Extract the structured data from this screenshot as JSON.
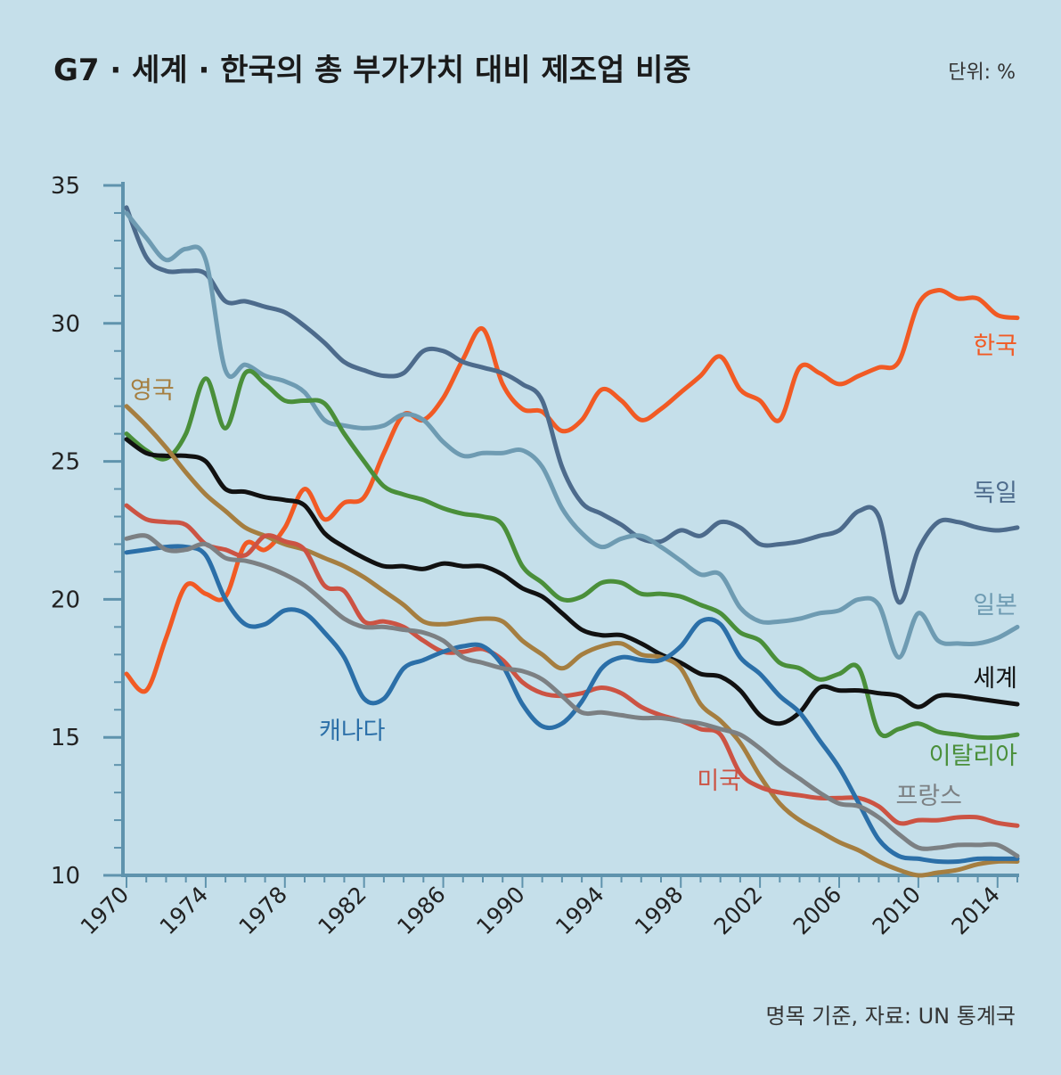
{
  "title": "G7 · 세계 · 한국의 총 부가가치 대비 제조업 비중",
  "unit_label": "단위: %",
  "source": "명목 기준, 자료: UN 통계국",
  "chart_data": {
    "type": "line",
    "x_start": 1970,
    "x_end": 2015,
    "ylim": [
      10,
      35
    ],
    "yticks": [
      "35",
      "30",
      "25",
      "20",
      "15",
      "10"
    ],
    "xticks": [
      "1970",
      "1974",
      "1978",
      "1982",
      "1986",
      "1990",
      "1994",
      "1998",
      "2002",
      "2006",
      "2010",
      "2014"
    ],
    "grid": false,
    "years": [
      1970,
      1971,
      1972,
      1973,
      1974,
      1975,
      1976,
      1977,
      1978,
      1979,
      1980,
      1981,
      1982,
      1983,
      1984,
      1985,
      1986,
      1987,
      1988,
      1989,
      1990,
      1991,
      1992,
      1993,
      1994,
      1995,
      1996,
      1997,
      1998,
      1999,
      2000,
      2001,
      2002,
      2003,
      2004,
      2005,
      2006,
      2007,
      2008,
      2009,
      2010,
      2011,
      2012,
      2013,
      2014,
      2015
    ],
    "series": [
      {
        "name": "한국",
        "color": "#f15a24",
        "values": [
          17.3,
          16.7,
          18.6,
          20.5,
          20.2,
          20.1,
          22.0,
          21.8,
          22.6,
          24.0,
          22.9,
          23.5,
          23.7,
          25.3,
          26.7,
          26.5,
          27.3,
          28.7,
          29.8,
          27.8,
          26.9,
          26.8,
          26.1,
          26.5,
          27.6,
          27.2,
          26.5,
          26.9,
          27.5,
          28.1,
          28.8,
          27.6,
          27.2,
          26.5,
          28.4,
          28.2,
          27.8,
          28.1,
          28.4,
          28.6,
          30.7,
          31.2,
          30.9,
          30.9,
          30.3,
          30.2
        ]
      },
      {
        "name": "독일",
        "color": "#4d6b8c",
        "values": [
          34.2,
          32.4,
          31.9,
          31.9,
          31.8,
          30.8,
          30.8,
          30.6,
          30.4,
          29.9,
          29.3,
          28.6,
          28.3,
          28.1,
          28.2,
          29.0,
          29.0,
          28.6,
          28.4,
          28.2,
          27.8,
          27.2,
          24.8,
          23.5,
          23.1,
          22.7,
          22.2,
          22.1,
          22.5,
          22.3,
          22.8,
          22.6,
          22.0,
          22.0,
          22.1,
          22.3,
          22.5,
          23.2,
          23.0,
          19.9,
          21.8,
          22.8,
          22.8,
          22.6,
          22.5,
          22.6
        ]
      },
      {
        "name": "일본",
        "color": "#6e9bb2",
        "values": [
          34.0,
          33.1,
          32.3,
          32.7,
          32.3,
          28.3,
          28.5,
          28.1,
          27.9,
          27.5,
          26.5,
          26.3,
          26.2,
          26.3,
          26.7,
          26.5,
          25.7,
          25.2,
          25.3,
          25.3,
          25.4,
          24.8,
          23.3,
          22.4,
          21.9,
          22.2,
          22.3,
          21.9,
          21.4,
          20.9,
          20.9,
          19.7,
          19.2,
          19.2,
          19.3,
          19.5,
          19.6,
          20.0,
          19.8,
          17.9,
          19.5,
          18.5,
          18.4,
          18.4,
          18.6,
          19.0
        ]
      },
      {
        "name": "이탈리아",
        "color": "#4a8f3a",
        "values": [
          26.0,
          25.4,
          25.1,
          26.0,
          28.0,
          26.2,
          28.2,
          27.8,
          27.2,
          27.2,
          27.1,
          26.0,
          25.0,
          24.1,
          23.8,
          23.6,
          23.3,
          23.1,
          23.0,
          22.7,
          21.2,
          20.6,
          20.0,
          20.1,
          20.6,
          20.6,
          20.2,
          20.2,
          20.1,
          19.8,
          19.5,
          18.8,
          18.5,
          17.7,
          17.5,
          17.1,
          17.3,
          17.5,
          15.2,
          15.3,
          15.5,
          15.2,
          15.1,
          15.0,
          15.0,
          15.1
        ]
      },
      {
        "name": "세계",
        "color": "#111111",
        "values": [
          25.8,
          25.3,
          25.2,
          25.2,
          25.0,
          24.0,
          23.9,
          23.7,
          23.6,
          23.4,
          22.4,
          21.9,
          21.5,
          21.2,
          21.2,
          21.1,
          21.3,
          21.2,
          21.2,
          20.9,
          20.4,
          20.1,
          19.5,
          18.9,
          18.7,
          18.7,
          18.4,
          18.0,
          17.7,
          17.3,
          17.2,
          16.7,
          15.8,
          15.5,
          15.9,
          16.8,
          16.7,
          16.7,
          16.6,
          16.5,
          16.1,
          16.5,
          16.5,
          16.4,
          16.3,
          16.2
        ]
      },
      {
        "name": "영국",
        "color": "#a57e40",
        "values": [
          27.0,
          26.3,
          25.5,
          24.6,
          23.8,
          23.2,
          22.6,
          22.3,
          22.0,
          21.8,
          21.5,
          21.2,
          20.8,
          20.3,
          19.8,
          19.2,
          19.1,
          19.2,
          19.3,
          19.2,
          18.5,
          18.0,
          17.5,
          18.0,
          18.3,
          18.4,
          18.0,
          17.9,
          17.5,
          16.2,
          15.6,
          14.8,
          13.6,
          12.6,
          12.0,
          11.6,
          11.2,
          10.9,
          10.5,
          10.2,
          10.0,
          10.1,
          10.2,
          10.4,
          10.5,
          10.5
        ]
      },
      {
        "name": "미국",
        "color": "#cc5343",
        "values": [
          23.4,
          22.9,
          22.8,
          22.7,
          22.0,
          21.8,
          21.6,
          22.3,
          22.1,
          21.8,
          20.5,
          20.3,
          19.2,
          19.2,
          19.0,
          18.5,
          18.1,
          18.1,
          18.2,
          17.8,
          17.0,
          16.6,
          16.5,
          16.6,
          16.8,
          16.6,
          16.1,
          15.8,
          15.6,
          15.3,
          15.1,
          13.7,
          13.2,
          13.0,
          12.9,
          12.8,
          12.8,
          12.8,
          12.5,
          11.9,
          12.0,
          12.0,
          12.1,
          12.1,
          11.9,
          11.8
        ]
      },
      {
        "name": "캐나다",
        "color": "#2b6fa8",
        "values": [
          21.7,
          21.8,
          21.9,
          21.9,
          21.6,
          20.0,
          19.1,
          19.1,
          19.6,
          19.5,
          18.8,
          17.9,
          16.4,
          16.4,
          17.5,
          17.8,
          18.1,
          18.3,
          18.3,
          17.6,
          16.2,
          15.4,
          15.5,
          16.3,
          17.5,
          17.9,
          17.8,
          17.8,
          18.3,
          19.2,
          19.1,
          17.9,
          17.3,
          16.5,
          15.9,
          14.9,
          13.9,
          12.6,
          11.3,
          10.7,
          10.6,
          10.5,
          10.5,
          10.6,
          10.6,
          10.6
        ]
      },
      {
        "name": "프랑스",
        "color": "#7c8083",
        "values": [
          22.2,
          22.3,
          21.8,
          21.8,
          22.0,
          21.5,
          21.4,
          21.2,
          20.9,
          20.5,
          19.9,
          19.3,
          19.0,
          19.0,
          18.9,
          18.8,
          18.5,
          17.9,
          17.7,
          17.5,
          17.4,
          17.1,
          16.5,
          15.9,
          15.9,
          15.8,
          15.7,
          15.7,
          15.6,
          15.5,
          15.3,
          15.1,
          14.6,
          14.0,
          13.5,
          13.0,
          12.6,
          12.5,
          12.1,
          11.5,
          11.0,
          11.0,
          11.1,
          11.1,
          11.1,
          10.7
        ]
      }
    ]
  }
}
